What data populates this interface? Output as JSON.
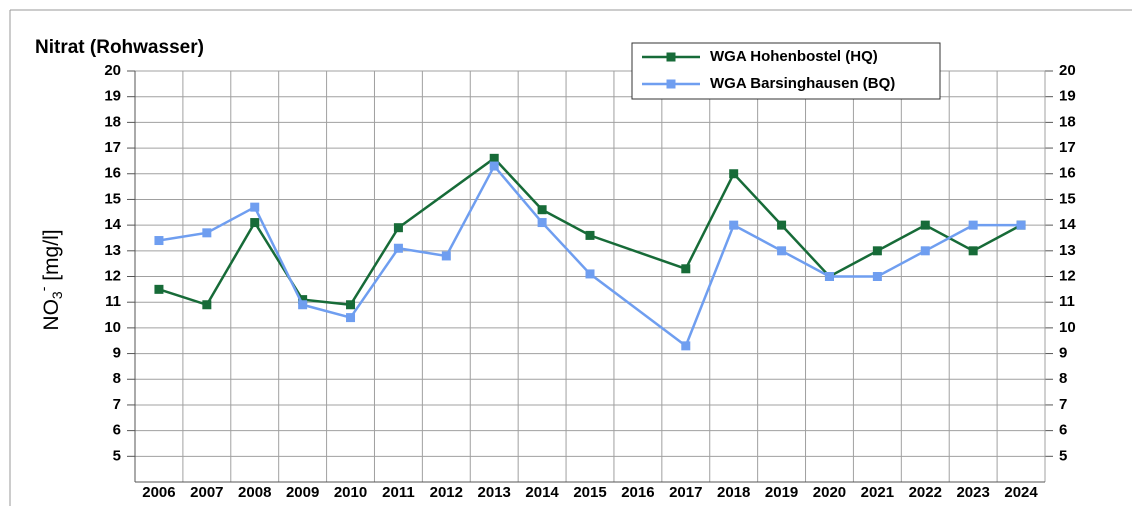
{
  "chart_data": {
    "type": "line",
    "title": "Nitrat (Rohwasser)",
    "y_label": {
      "base": "NO",
      "sub": "3",
      "sup": "-",
      "unit": " [mg/l]"
    },
    "xlim": [
      2005.5,
      2024.5
    ],
    "xticks": [
      2006,
      2007,
      2008,
      2009,
      2010,
      2011,
      2012,
      2013,
      2014,
      2015,
      2016,
      2017,
      2018,
      2019,
      2020,
      2021,
      2022,
      2023,
      2024
    ],
    "ylim": [
      4,
      20
    ],
    "yticks": [
      5,
      6,
      7,
      8,
      9,
      10,
      11,
      12,
      13,
      14,
      15,
      16,
      17,
      18,
      19,
      20
    ],
    "grid": true,
    "legend": "top-right",
    "series": [
      {
        "name": "WGA Hohenbostel (HQ)",
        "color": "#176b38",
        "x": [
          2006,
          2007,
          2008,
          2009,
          2010,
          2011,
          2013,
          2014,
          2015,
          2017,
          2018,
          2019,
          2020,
          2021,
          2022,
          2023,
          2024
        ],
        "values": [
          11.5,
          10.9,
          14.1,
          11.1,
          10.9,
          13.9,
          16.6,
          14.6,
          13.6,
          12.3,
          16.0,
          14.0,
          12.0,
          13.0,
          14.0,
          13.0,
          14.0
        ]
      },
      {
        "name": "WGA Barsinghausen (BQ)",
        "color": "#6f9ef0",
        "x": [
          2006,
          2007,
          2008,
          2009,
          2010,
          2011,
          2012,
          2013,
          2014,
          2015,
          2017,
          2018,
          2019,
          2020,
          2021,
          2022,
          2023,
          2024
        ],
        "values": [
          13.4,
          13.7,
          14.7,
          10.9,
          10.4,
          13.1,
          12.8,
          16.3,
          14.1,
          12.1,
          9.3,
          14.0,
          13.0,
          12.0,
          12.0,
          13.0,
          14.0,
          14.0
        ]
      }
    ]
  }
}
